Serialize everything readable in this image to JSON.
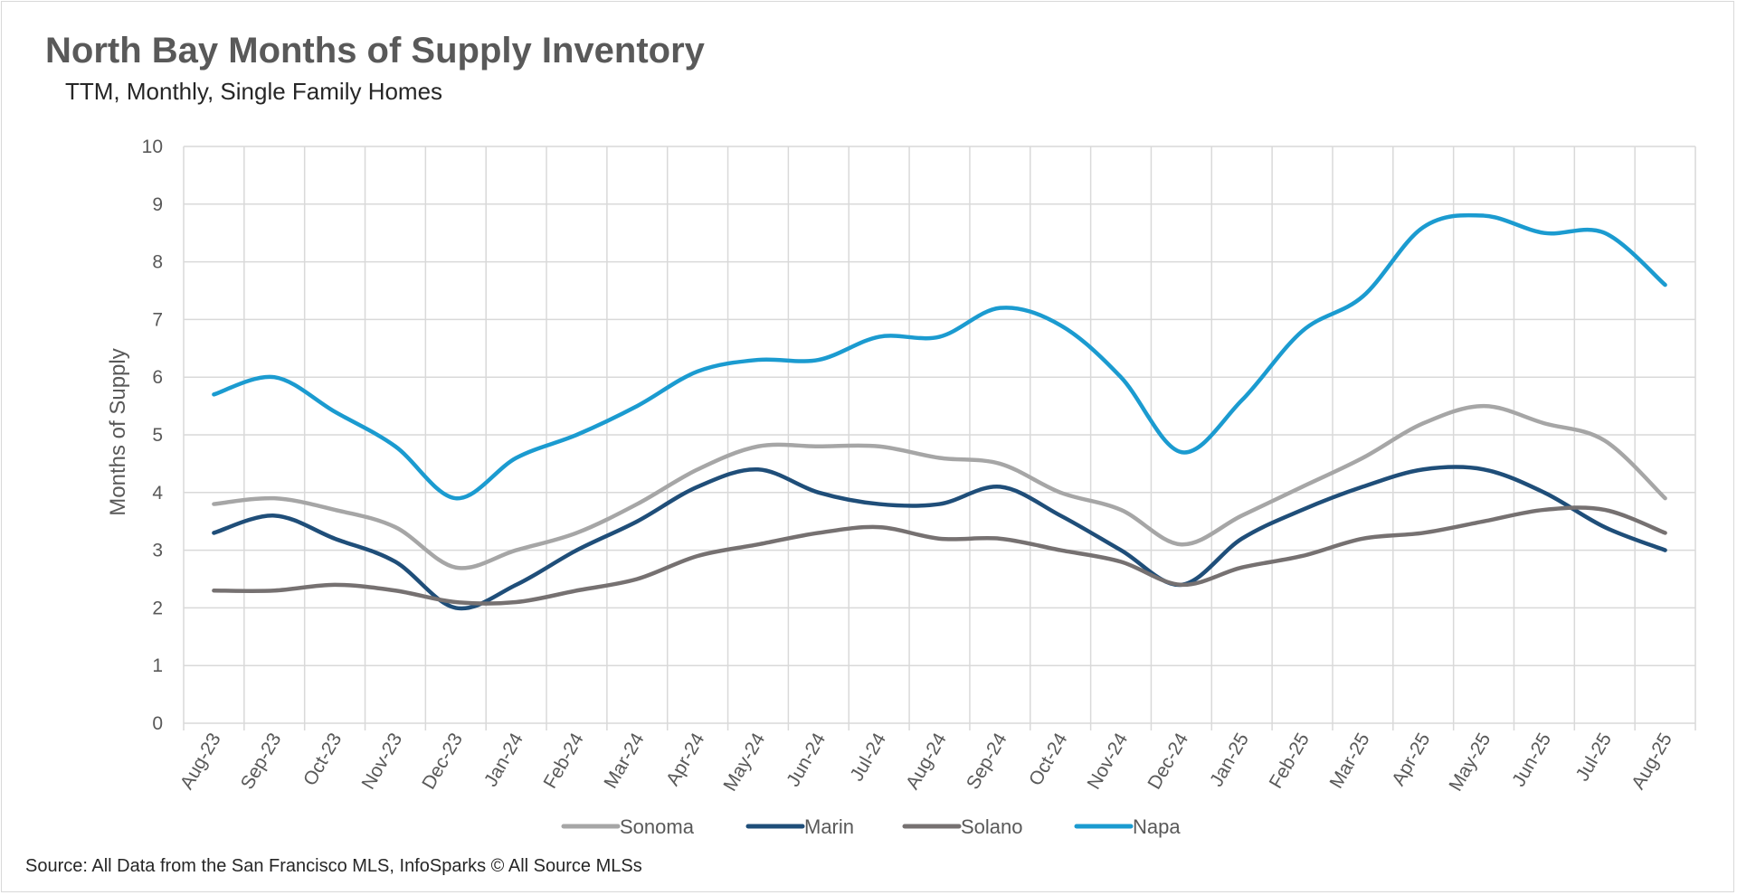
{
  "title": "North Bay Months of Supply Inventory",
  "subtitle": "TTM, Monthly, Single Family Homes",
  "source": "Source: All Data from the San Francisco MLS, InfoSparks © All Source MLSs",
  "chart_data": {
    "type": "line",
    "title": "North Bay Months of Supply Inventory",
    "subtitle": "TTM, Monthly, Single Family Homes",
    "xlabel": "",
    "ylabel": "Months of Supply",
    "ylim": [
      0,
      10
    ],
    "yticks": [
      0,
      1,
      2,
      3,
      4,
      5,
      6,
      7,
      8,
      9,
      10
    ],
    "grid": true,
    "legend_position": "bottom",
    "categories": [
      "Aug-23",
      "Sep-23",
      "Oct-23",
      "Nov-23",
      "Dec-23",
      "Jan-24",
      "Feb-24",
      "Mar-24",
      "Apr-24",
      "May-24",
      "Jun-24",
      "Jul-24",
      "Aug-24",
      "Sep-24",
      "Oct-24",
      "Nov-24",
      "Dec-24",
      "Jan-25",
      "Feb-25",
      "Mar-25",
      "Apr-25",
      "May-25",
      "Jun-25",
      "Jul-25",
      "Aug-25"
    ],
    "series": [
      {
        "name": "Sonoma",
        "color": "#a6a6a6",
        "values": [
          3.8,
          3.9,
          3.7,
          3.4,
          2.7,
          3.0,
          3.3,
          3.8,
          4.4,
          4.8,
          4.8,
          4.8,
          4.6,
          4.5,
          4.0,
          3.7,
          3.1,
          3.6,
          4.1,
          4.6,
          5.2,
          5.5,
          5.2,
          4.9,
          3.9
        ]
      },
      {
        "name": "Marin",
        "color": "#1f4e79",
        "values": [
          3.3,
          3.6,
          3.2,
          2.8,
          2.0,
          2.4,
          3.0,
          3.5,
          4.1,
          4.4,
          4.0,
          3.8,
          3.8,
          4.1,
          3.6,
          3.0,
          2.4,
          3.2,
          3.7,
          4.1,
          4.4,
          4.4,
          4.0,
          3.4,
          3.0
        ]
      },
      {
        "name": "Solano",
        "color": "#767171",
        "values": [
          2.3,
          2.3,
          2.4,
          2.3,
          2.1,
          2.1,
          2.3,
          2.5,
          2.9,
          3.1,
          3.3,
          3.4,
          3.2,
          3.2,
          3.0,
          2.8,
          2.4,
          2.7,
          2.9,
          3.2,
          3.3,
          3.5,
          3.7,
          3.7,
          3.3
        ]
      },
      {
        "name": "Napa",
        "color": "#1b9bd0",
        "values": [
          5.7,
          6.0,
          5.4,
          4.8,
          3.9,
          4.6,
          5.0,
          5.5,
          6.1,
          6.3,
          6.3,
          6.7,
          6.7,
          7.2,
          6.9,
          6.0,
          4.7,
          5.6,
          6.8,
          7.4,
          8.6,
          8.8,
          8.5,
          8.5,
          7.6
        ]
      }
    ]
  }
}
